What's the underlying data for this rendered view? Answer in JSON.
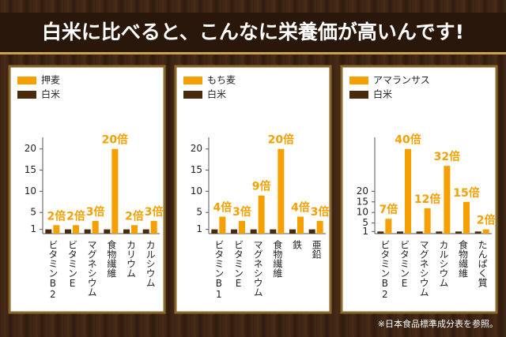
{
  "title": "白米に比べると、こんなに栄養価が高いんです!",
  "chart_data": [
    {
      "type": "bar",
      "categories": [
        "ビタミンB2",
        "ビタミンE",
        "マグネシウム",
        "食物繊維",
        "カリウム",
        "カルシウム"
      ],
      "series": [
        {
          "name": "押麦",
          "color": "#f5a000",
          "values": [
            2,
            2,
            3,
            20,
            2,
            3
          ],
          "value_labels": [
            "2倍",
            "2倍",
            "3倍",
            "20倍",
            "2倍",
            "3倍"
          ]
        },
        {
          "name": "白米",
          "color": "#4a2a0c",
          "values": [
            1,
            1,
            1,
            1,
            1,
            1
          ]
        }
      ],
      "ylim": [
        0,
        22
      ],
      "yticks": [
        1,
        5,
        10,
        15,
        20
      ]
    },
    {
      "type": "bar",
      "categories": [
        "ビタミンB1",
        "ビタミンE",
        "マグネシウム",
        "食物繊維",
        "鉄",
        "亜鉛"
      ],
      "series": [
        {
          "name": "もち麦",
          "color": "#f5a000",
          "values": [
            4,
            3,
            9,
            20,
            4,
            3
          ],
          "value_labels": [
            "4倍",
            "3倍",
            "9倍",
            "20倍",
            "4倍",
            "3倍"
          ]
        },
        {
          "name": "白米",
          "color": "#4a2a0c",
          "values": [
            1,
            1,
            1,
            1,
            1,
            1
          ]
        }
      ],
      "ylim": [
        0,
        22
      ],
      "yticks": [
        1,
        5,
        10,
        15,
        20
      ]
    },
    {
      "type": "bar",
      "categories": [
        "ビタミンB2",
        "ビタミンE",
        "マグネシウム",
        "カルシウム",
        "食物繊維",
        "たんぱく質"
      ],
      "series": [
        {
          "name": "アマランサス",
          "color": "#f5a000",
          "values": [
            7,
            40,
            12,
            32,
            15,
            2
          ],
          "value_labels": [
            "7倍",
            "40倍",
            "12倍",
            "32倍",
            "15倍",
            "2倍"
          ]
        },
        {
          "name": "白米",
          "color": "#4a2a0c",
          "values": [
            1,
            1,
            1,
            1,
            1,
            1
          ]
        }
      ],
      "ylim": [
        0,
        44
      ],
      "yticks": [
        1,
        5,
        10,
        15,
        20
      ]
    }
  ],
  "footnote": "※日本食品標準成分表を参照。"
}
